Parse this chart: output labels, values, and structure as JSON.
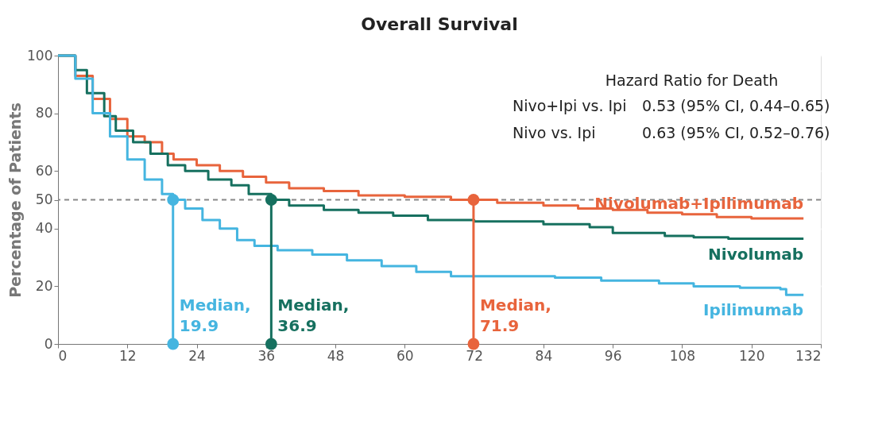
{
  "chart_data": {
    "type": "step",
    "title": "Overall Survival",
    "ylabel": "Percentage of Patients",
    "xlim": [
      0,
      132
    ],
    "xticks": [
      0,
      12,
      24,
      36,
      48,
      60,
      72,
      84,
      96,
      108,
      120,
      132
    ],
    "ylim": [
      0,
      100
    ],
    "yticks": [
      0,
      20,
      40,
      50,
      60,
      80,
      100
    ],
    "grid": "y",
    "legend": false,
    "marker": "none",
    "line_style": "solid",
    "series": [
      {
        "name": "Nivolumab+Ipilimumab",
        "color": "#e8643c",
        "x": [
          0,
          3,
          6,
          9,
          12,
          15,
          18,
          20,
          24,
          28,
          32,
          36,
          40,
          46,
          52,
          60,
          68,
          71.9,
          76,
          84,
          90,
          96,
          102,
          108,
          114,
          120,
          129
        ],
        "values": [
          100,
          93,
          85,
          78,
          72,
          70,
          66,
          64,
          62,
          60,
          58,
          56,
          54,
          53,
          51.5,
          51,
          50,
          50,
          49,
          48,
          47,
          46.5,
          45.5,
          45,
          44,
          43.5,
          43.5
        ]
      },
      {
        "name": "Nivolumab",
        "color": "#16705f",
        "x": [
          0,
          3,
          5,
          8,
          10,
          13,
          16,
          19,
          22,
          26,
          30,
          33,
          36.9,
          40,
          46,
          52,
          58,
          64,
          72,
          84,
          92,
          96,
          100,
          105,
          110,
          116,
          129
        ],
        "values": [
          100,
          95,
          87,
          79,
          74,
          70,
          66,
          62,
          60,
          57,
          55,
          52,
          50,
          48,
          46.5,
          45.5,
          44.5,
          43,
          42.5,
          41.5,
          40.5,
          38.5,
          38.5,
          37.5,
          37,
          36.5,
          36.5
        ]
      },
      {
        "name": "Ipilimumab",
        "color": "#45b5e0",
        "x": [
          0,
          3,
          6,
          9,
          12,
          15,
          18,
          19.9,
          22,
          25,
          28,
          31,
          34,
          38,
          44,
          50,
          56,
          62,
          68,
          80,
          86,
          94,
          104,
          110,
          118,
          125,
          126,
          129
        ],
        "values": [
          100,
          92,
          80,
          72,
          64,
          57,
          52,
          50,
          47,
          43,
          40,
          36,
          34,
          32.5,
          31,
          29,
          27,
          25,
          23.5,
          23.5,
          23,
          22,
          21,
          20,
          19.5,
          19,
          17,
          17
        ]
      }
    ],
    "ref_lines": [
      {
        "axis": "y",
        "value": 50,
        "color": "#888888",
        "line_style": "dashed"
      }
    ],
    "annotations": [
      {
        "text": "Median,\n71.9",
        "x": 71.9,
        "y": 50
      },
      {
        "text": "Median,\n36.9",
        "x": 36.9,
        "y": 50
      },
      {
        "text": "Median,\n19.9",
        "x": 19.9,
        "y": 50
      },
      "Hazard Ratio for Death",
      "Nivo+Ipi vs. Ipi",
      "0.53 (95% CI, 0.44–0.65)",
      "Nivo vs. Ipi",
      "0.63 (95% CI, 0.52–0.76)"
    ]
  }
}
